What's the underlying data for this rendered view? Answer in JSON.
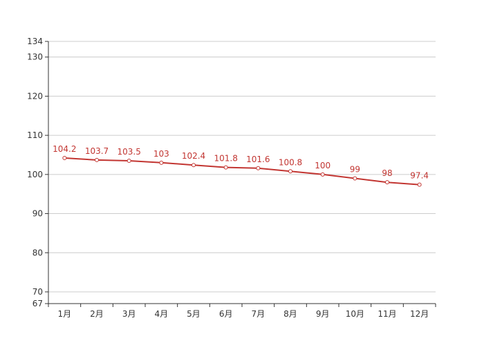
{
  "chart_data": {
    "type": "line",
    "categories": [
      "1月",
      "2月",
      "3月",
      "4月",
      "5月",
      "6月",
      "7月",
      "8月",
      "9月",
      "10月",
      "11月",
      "12月"
    ],
    "series": [
      {
        "values": [
          104.2,
          103.7,
          103.5,
          103,
          102.4,
          101.8,
          101.6,
          100.8,
          100,
          99,
          98,
          97.4
        ],
        "color": "#c23531"
      }
    ],
    "ylim": [
      67,
      134
    ],
    "yticks": [
      67,
      70,
      80,
      90,
      100,
      110,
      120,
      130,
      134
    ],
    "grid": true,
    "data_labels": true
  }
}
